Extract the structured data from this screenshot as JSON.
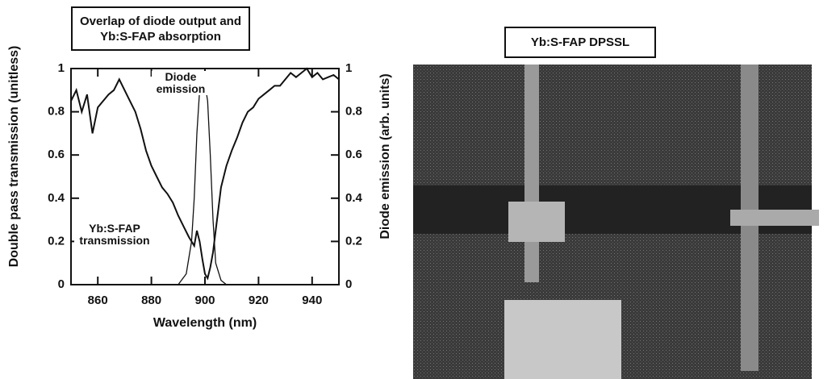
{
  "chart_data": {
    "type": "line",
    "title": "Overlap of diode output and Yb:S-FAP absorption",
    "xlabel": "Wavelength (nm)",
    "ylabel": "Double pass transmission (unitless)",
    "y2label": "Diode emission (arb. units)",
    "annotations": [
      "Diode emission",
      "Yb:S-FAP transmission"
    ],
    "xlim": [
      850,
      950
    ],
    "xticks": [
      860,
      880,
      900,
      920,
      940
    ],
    "ylim": [
      0,
      1
    ],
    "yticks": [
      0,
      0.2,
      0.4,
      0.6,
      0.8,
      1
    ],
    "y2lim": [
      0,
      1
    ],
    "y2ticks": [
      0,
      0.2,
      0.4,
      0.6,
      0.8,
      1
    ],
    "series": [
      {
        "name": "Yb:S-FAP transmission",
        "color": "#111111",
        "x": [
          850,
          852,
          854,
          856,
          858,
          860,
          862,
          864,
          866,
          868,
          870,
          872,
          874,
          876,
          878,
          880,
          882,
          884,
          886,
          888,
          890,
          892,
          894,
          896,
          897,
          898,
          899,
          900,
          901,
          902,
          903,
          904,
          905,
          906,
          908,
          910,
          912,
          914,
          916,
          918,
          920,
          922,
          924,
          926,
          928,
          930,
          932,
          934,
          936,
          938,
          940,
          942,
          944,
          946,
          948,
          950
        ],
        "values": [
          0.85,
          0.9,
          0.8,
          0.88,
          0.7,
          0.82,
          0.85,
          0.88,
          0.9,
          0.95,
          0.9,
          0.85,
          0.8,
          0.72,
          0.62,
          0.55,
          0.5,
          0.45,
          0.42,
          0.38,
          0.32,
          0.27,
          0.22,
          0.18,
          0.25,
          0.2,
          0.12,
          0.05,
          0.03,
          0.08,
          0.15,
          0.25,
          0.35,
          0.45,
          0.55,
          0.62,
          0.68,
          0.75,
          0.8,
          0.82,
          0.86,
          0.88,
          0.9,
          0.92,
          0.92,
          0.95,
          0.98,
          0.96,
          0.98,
          1.0,
          0.96,
          0.98,
          0.95,
          0.96,
          0.97,
          0.95
        ]
      },
      {
        "name": "Diode emission",
        "color": "#111111",
        "axis": "y2",
        "x": [
          888,
          890,
          893,
          895,
          896,
          897,
          898,
          899,
          900,
          901,
          902,
          903,
          904,
          906,
          908,
          910
        ],
        "values": [
          0,
          0,
          0.05,
          0.2,
          0.4,
          0.7,
          0.9,
          0.95,
          0.93,
          0.85,
          0.6,
          0.3,
          0.1,
          0.02,
          0,
          0
        ]
      }
    ]
  },
  "photo": {
    "title": "Yb:S-FAP DPSSL"
  }
}
